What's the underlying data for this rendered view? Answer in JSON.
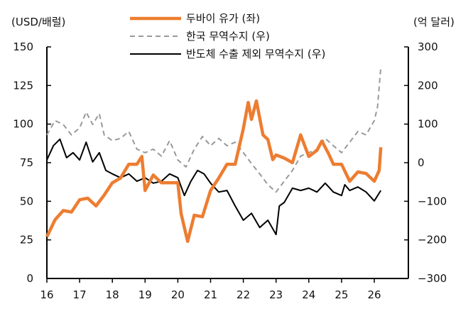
{
  "chart_data": {
    "type": "line",
    "left_axis": {
      "label": "(USD/배럴)",
      "range": [
        0,
        150
      ],
      "ticks": [
        0,
        25,
        50,
        75,
        100,
        125,
        150
      ]
    },
    "right_axis": {
      "label": "(억 달러)",
      "range": [
        -300,
        300
      ],
      "ticks": [
        -300,
        -200,
        -100,
        0,
        100,
        200,
        300
      ]
    },
    "x_axis": {
      "range": [
        16,
        26.9
      ],
      "ticks": [
        "16",
        "17",
        "18",
        "19",
        "20",
        "21",
        "22",
        "23",
        "24",
        "25",
        "26"
      ]
    },
    "grid": false,
    "legend_position": "top-center",
    "series": [
      {
        "name": "두바이 유가 (좌)",
        "axis": "left",
        "color": "#ED7D31",
        "style": "solid-thick",
        "x": [
          16.0,
          16.25,
          16.5,
          16.75,
          17.0,
          17.25,
          17.5,
          17.75,
          18.0,
          18.25,
          18.5,
          18.75,
          18.9,
          19.0,
          19.25,
          19.5,
          19.75,
          20.0,
          20.1,
          20.3,
          20.5,
          20.75,
          21.0,
          21.25,
          21.5,
          21.75,
          22.0,
          22.15,
          22.25,
          22.4,
          22.6,
          22.75,
          22.9,
          23.0,
          23.25,
          23.5,
          23.75,
          24.0,
          24.25,
          24.4,
          24.6,
          24.75,
          25.0,
          25.25,
          25.5,
          25.75,
          26.0,
          26.15,
          26.2
        ],
        "values": [
          27,
          38,
          44,
          43,
          51,
          52,
          47,
          54,
          62,
          65,
          74,
          74,
          79,
          57,
          67,
          62,
          62,
          62,
          42,
          24,
          41,
          40,
          57,
          65,
          74,
          74,
          97,
          114,
          103,
          115,
          93,
          90,
          77,
          80,
          78,
          75,
          93,
          79,
          83,
          89,
          81,
          74,
          74,
          63,
          69,
          68,
          63,
          70,
          85
        ]
      },
      {
        "name": "한국 무역수지 (우)",
        "axis": "right",
        "color": "#999999",
        "style": "dashed",
        "x": [
          16.0,
          16.25,
          16.5,
          16.75,
          17.0,
          17.2,
          17.4,
          17.6,
          17.75,
          18.0,
          18.25,
          18.5,
          18.75,
          19.0,
          19.25,
          19.5,
          19.75,
          20.0,
          20.25,
          20.5,
          20.75,
          21.0,
          21.25,
          21.5,
          21.75,
          22.0,
          22.25,
          22.5,
          22.75,
          23.0,
          23.25,
          23.5,
          23.75,
          24.0,
          24.25,
          24.5,
          24.75,
          25.0,
          25.25,
          25.5,
          25.75,
          26.0,
          26.1,
          26.2
        ],
        "values": [
          72,
          109,
          99,
          72,
          90,
          131,
          99,
          127,
          72,
          57,
          63,
          81,
          35,
          26,
          35,
          17,
          57,
          7,
          -11,
          35,
          68,
          44,
          63,
          44,
          53,
          26,
          -2,
          -29,
          -57,
          -76,
          -48,
          -20,
          17,
          26,
          35,
          63,
          44,
          26,
          53,
          81,
          72,
          109,
          145,
          247
        ]
      },
      {
        "name": "반도체 수출 제외 무역수지 (우)",
        "axis": "right",
        "color": "#000000",
        "style": "solid",
        "x": [
          16.0,
          16.2,
          16.4,
          16.6,
          16.8,
          17.0,
          17.2,
          17.4,
          17.6,
          17.8,
          18.0,
          18.25,
          18.5,
          18.75,
          19.0,
          19.25,
          19.5,
          19.75,
          20.0,
          20.2,
          20.4,
          20.6,
          20.8,
          21.0,
          21.25,
          21.5,
          21.75,
          22.0,
          22.25,
          22.5,
          22.75,
          23.0,
          23.1,
          23.25,
          23.5,
          23.75,
          24.0,
          24.25,
          24.5,
          24.75,
          25.0,
          25.1,
          25.25,
          25.5,
          25.75,
          26.0,
          26.2
        ],
        "values": [
          7,
          44,
          61,
          13,
          26,
          7,
          53,
          2,
          26,
          -20,
          -29,
          -39,
          -29,
          -48,
          -39,
          -53,
          -48,
          -29,
          -39,
          -85,
          -48,
          -20,
          -29,
          -53,
          -76,
          -72,
          -112,
          -149,
          -131,
          -168,
          -149,
          -186,
          -112,
          -103,
          -66,
          -72,
          -66,
          -76,
          -53,
          -76,
          -85,
          -57,
          -72,
          -63,
          -76,
          -99,
          -72
        ]
      }
    ]
  }
}
